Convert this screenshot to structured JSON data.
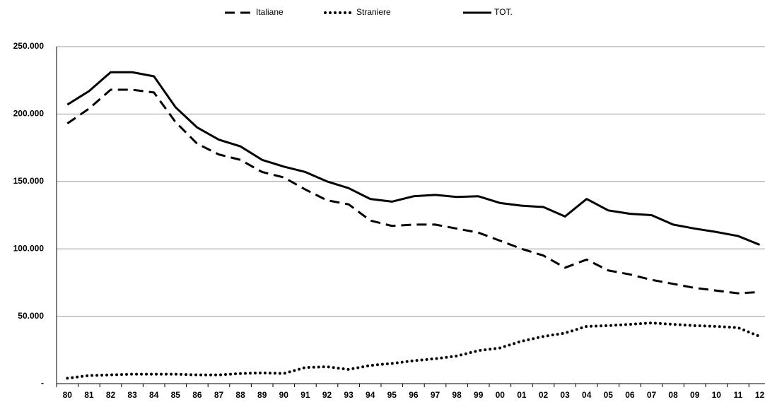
{
  "chart_data": {
    "type": "line",
    "categories": [
      "80",
      "81",
      "82",
      "83",
      "84",
      "85",
      "86",
      "87",
      "88",
      "89",
      "90",
      "91",
      "92",
      "93",
      "94",
      "95",
      "96",
      "97",
      "98",
      "99",
      "00",
      "01",
      "02",
      "03",
      "04",
      "05",
      "06",
      "07",
      "08",
      "09",
      "10",
      "11",
      "12"
    ],
    "series": [
      {
        "name": "Italiane",
        "color": "#000000",
        "dash": "dashed",
        "values": [
          193000,
          204000,
          218000,
          218000,
          216000,
          194000,
          178000,
          170000,
          166000,
          157000,
          153000,
          144000,
          136000,
          133000,
          121000,
          117000,
          118000,
          118000,
          115000,
          112000,
          106000,
          100000,
          95000,
          86000,
          92000,
          84000,
          81000,
          77000,
          74000,
          71000,
          69000,
          67000,
          68000
        ]
      },
      {
        "name": "Straniere",
        "color": "#000000",
        "dash": "dotted",
        "values": [
          4000,
          6000,
          6500,
          7000,
          7000,
          7000,
          6500,
          6500,
          7500,
          8000,
          7500,
          12000,
          12500,
          10500,
          13500,
          15000,
          17000,
          18500,
          20500,
          24500,
          26500,
          31500,
          35000,
          37500,
          42500,
          43000,
          44000,
          45000,
          44000,
          43000,
          42500,
          41500,
          35000
        ]
      },
      {
        "name": "TOT.",
        "color": "#000000",
        "dash": "solid",
        "values": [
          207000,
          217000,
          231000,
          231000,
          228000,
          205000,
          190000,
          181000,
          176000,
          166000,
          161000,
          157000,
          150000,
          145000,
          137000,
          135000,
          139000,
          140000,
          138500,
          139000,
          134000,
          132000,
          131000,
          124000,
          137000,
          128500,
          126000,
          125000,
          118000,
          115000,
          112500,
          109500,
          103000
        ]
      }
    ],
    "ylim": [
      0,
      250000
    ],
    "yticks": [
      {
        "value": 0,
        "label": "-"
      },
      {
        "value": 50000,
        "label": "50.000"
      },
      {
        "value": 100000,
        "label": "100.000"
      },
      {
        "value": 150000,
        "label": "150.000"
      },
      {
        "value": 200000,
        "label": "200.000"
      },
      {
        "value": 250000,
        "label": "250.000"
      }
    ],
    "grid": true
  }
}
